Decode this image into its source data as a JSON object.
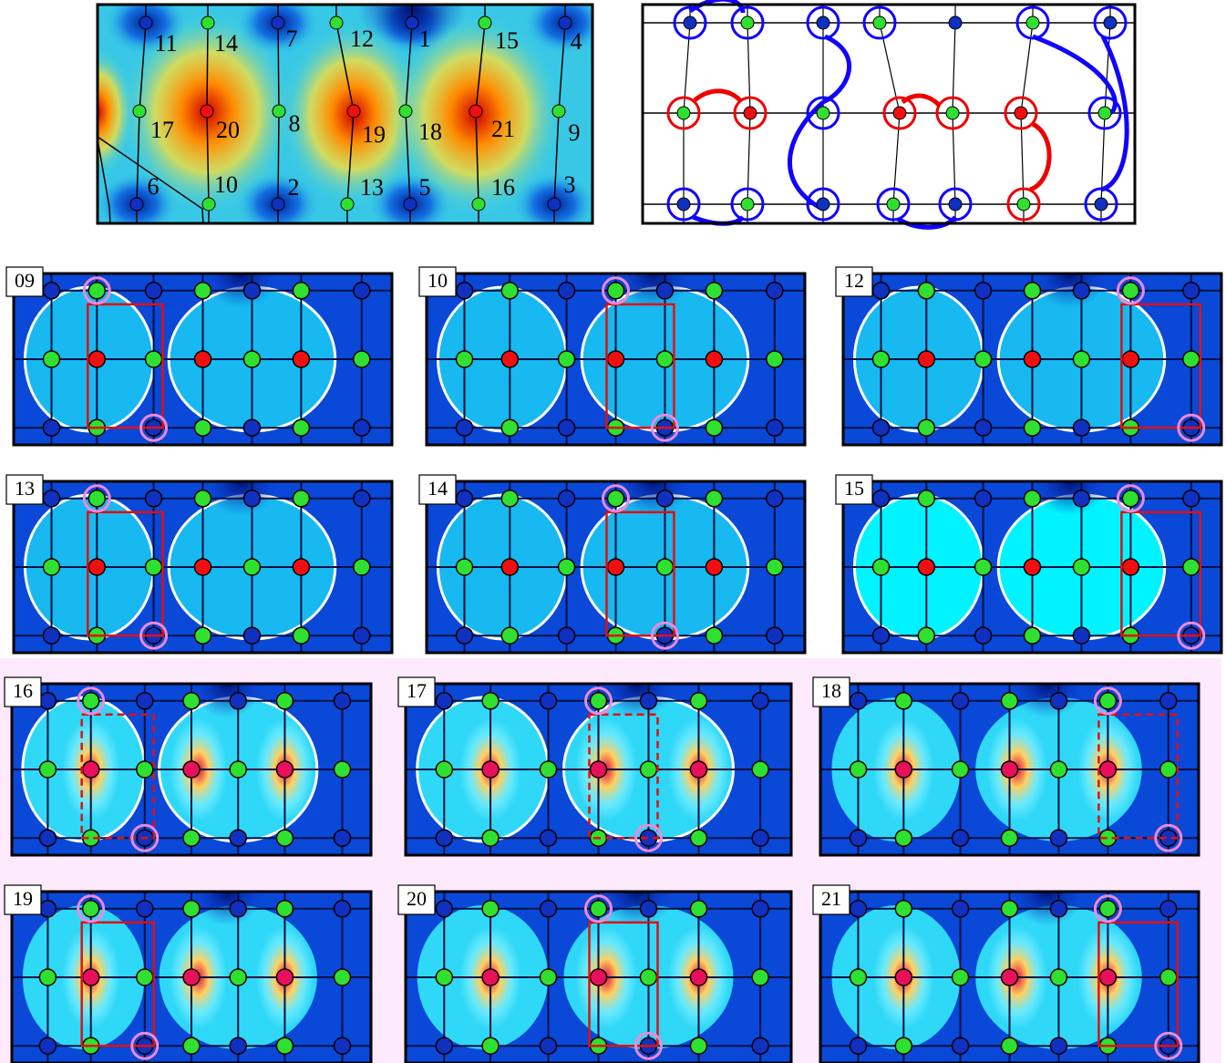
{
  "top_left": {
    "labels": [
      "11",
      "14",
      "7",
      "12",
      "1",
      "15",
      "4",
      "17",
      "20",
      "8",
      "19",
      "18",
      "21",
      "9",
      "6",
      "10",
      "2",
      "13",
      "5",
      "16",
      "3"
    ]
  },
  "panels": [
    {
      "label": "09"
    },
    {
      "label": "10"
    },
    {
      "label": "12"
    },
    {
      "label": "13"
    },
    {
      "label": "14"
    },
    {
      "label": "15"
    },
    {
      "label": "16"
    },
    {
      "label": "17"
    },
    {
      "label": "18"
    },
    {
      "label": "19"
    },
    {
      "label": "20"
    },
    {
      "label": "21"
    }
  ]
}
